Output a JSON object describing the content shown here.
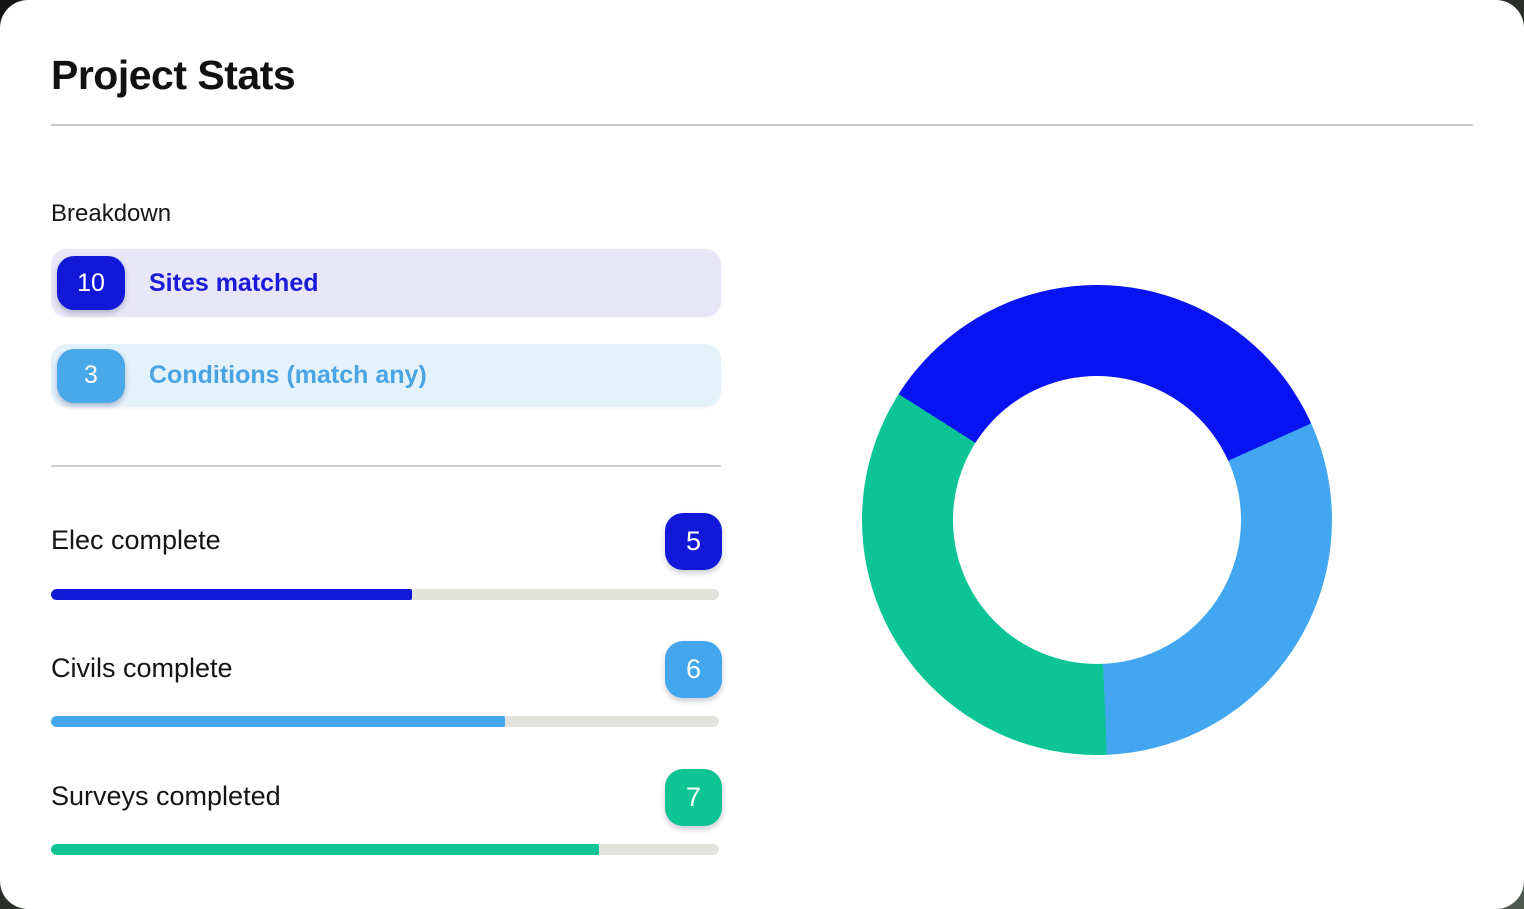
{
  "page": {
    "title": "Project Stats"
  },
  "breakdown": {
    "label": "Breakdown",
    "items": [
      {
        "count": "10",
        "label": "Sites matched",
        "badge_color": "#1118d8",
        "row_bg": "#e8e7f8",
        "text_color": "#1b1ad9"
      },
      {
        "count": "3",
        "label": "Conditions (match any)",
        "badge_color": "#49a8e9",
        "row_bg": "#e4f2fc",
        "text_color": "#4aa4e4"
      }
    ]
  },
  "metrics": [
    {
      "label": "Elec complete",
      "value": "5",
      "color": "#1118d8",
      "progress_pct": 54
    },
    {
      "label": "Civils complete",
      "value": "6",
      "color": "#44a7ee",
      "progress_pct": 68
    },
    {
      "label": "Surveys completed",
      "value": "7",
      "color": "#0ec494",
      "progress_pct": 82
    }
  ],
  "chart_data": {
    "type": "pie",
    "variant": "donut",
    "title": "",
    "legend_position": "none",
    "rotation_deg": -57.6,
    "inner_radius_ratio": 0.61,
    "segments": [
      {
        "label": "Elec complete",
        "color": "#0813f2",
        "angle_deg": 123.3,
        "share_pct": 34.2
      },
      {
        "label": "Civils complete",
        "color": "#42a7f0",
        "angle_deg": 111.9,
        "share_pct": 31.1
      },
      {
        "label": "Surveys completed",
        "color": "#0cc495",
        "angle_deg": 124.8,
        "share_pct": 34.7
      }
    ]
  }
}
